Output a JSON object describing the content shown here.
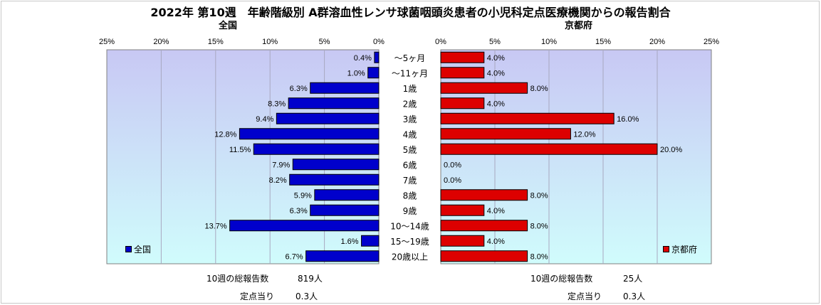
{
  "title": "2022年 第10週　年齢階級別 A群溶血性レンサ球菌咽頭炎患者の小児科定点医療機関からの報告割合",
  "left_panel": {
    "label": "全国",
    "legend": "全国",
    "summary": {
      "total_label": "10週の総報告数",
      "total_value": "819人",
      "per_label": "定点当り",
      "per_value": "0.3人"
    }
  },
  "right_panel": {
    "label": "京都府",
    "legend": "京都府",
    "summary": {
      "total_label": "10週の総報告数",
      "total_value": "25人",
      "per_label": "定点当り",
      "per_value": "0.3人"
    }
  },
  "colors": {
    "national": "#0000cc",
    "kyoto": "#dd0000",
    "plot_bg_top": "#c8c8f4",
    "plot_bg_bottom": "#d0fcfc"
  },
  "chart_data": {
    "type": "bar",
    "orientation": "horizontal",
    "categories": [
      "～5ヶ月",
      "～11ヶ月",
      "1歳",
      "2歳",
      "3歳",
      "4歳",
      "5歳",
      "6歳",
      "7歳",
      "8歳",
      "9歳",
      "10～14歳",
      "15～19歳",
      "20歳以上"
    ],
    "series": [
      {
        "name": "全国",
        "values": [
          0.4,
          1.0,
          6.3,
          8.3,
          9.4,
          12.8,
          11.5,
          7.9,
          8.2,
          5.9,
          6.3,
          13.7,
          1.6,
          6.7
        ],
        "labels": [
          "0.4%",
          "1.0%",
          "6.3%",
          "8.3%",
          "9.4%",
          "12.8%",
          "11.5%",
          "7.9%",
          "8.2%",
          "5.9%",
          "6.3%",
          "13.7%",
          "1.6%",
          "6.7%"
        ]
      },
      {
        "name": "京都府",
        "values": [
          4.0,
          4.0,
          8.0,
          4.0,
          16.0,
          12.0,
          20.0,
          0.0,
          0.0,
          8.0,
          4.0,
          8.0,
          4.0,
          8.0
        ],
        "labels": [
          "4.0%",
          "4.0%",
          "8.0%",
          "4.0%",
          "16.0%",
          "12.0%",
          "20.0%",
          "0.0%",
          "0.0%",
          "8.0%",
          "4.0%",
          "8.0%",
          "4.0%",
          "8.0%"
        ]
      }
    ],
    "left_ticks": [
      "25%",
      "20%",
      "15%",
      "10%",
      "5%",
      "0%"
    ],
    "right_ticks": [
      "0%",
      "5%",
      "10%",
      "15%",
      "20%",
      "25%"
    ],
    "xlim": [
      0,
      25
    ],
    "grid": true,
    "legend_position": "bottom"
  }
}
